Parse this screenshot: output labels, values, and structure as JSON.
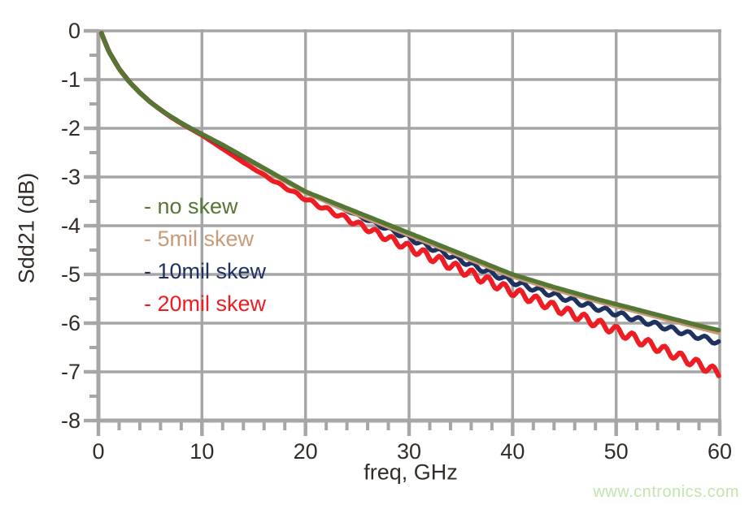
{
  "page": {
    "background": "#ffffff"
  },
  "watermark": {
    "text": "www.cntronics.com",
    "color": "#c3e4af"
  },
  "chart_data": {
    "type": "line",
    "title": "",
    "xlabel": "freq, GHz",
    "ylabel": "Sdd21 (dB)",
    "xlim": [
      0,
      60
    ],
    "ylim": [
      -8,
      0
    ],
    "x_ticks": [
      0,
      10,
      20,
      30,
      40,
      50,
      60
    ],
    "y_ticks": [
      0,
      -1,
      -2,
      -3,
      -4,
      -5,
      -6,
      -7,
      -8
    ],
    "x_minor_step": 2,
    "y_minor_step": 0.5,
    "grid": true,
    "legend_position": "inside-upper-left",
    "colors": {
      "grid": "#a6a6a6",
      "axis": "#a6a6a6",
      "tick_text": "#332c28"
    },
    "series": [
      {
        "name": "no-skew",
        "label": "- no skew",
        "color": "#567634",
        "width": 5.5,
        "points": [
          [
            0.3,
            -0.05
          ],
          [
            0.5,
            -0.16
          ],
          [
            0.75,
            -0.3
          ],
          [
            1,
            -0.42
          ],
          [
            1.5,
            -0.61
          ],
          [
            2,
            -0.78
          ],
          [
            2.5,
            -0.92
          ],
          [
            3,
            -1.05
          ],
          [
            3.5,
            -1.16
          ],
          [
            4,
            -1.27
          ],
          [
            4.5,
            -1.37
          ],
          [
            5,
            -1.46
          ],
          [
            6,
            -1.62
          ],
          [
            7,
            -1.76
          ],
          [
            8,
            -1.89
          ],
          [
            9,
            -2.01
          ],
          [
            10,
            -2.12
          ],
          [
            11,
            -2.23
          ],
          [
            12,
            -2.34
          ],
          [
            13,
            -2.46
          ],
          [
            14,
            -2.58
          ],
          [
            15,
            -2.7
          ],
          [
            16,
            -2.82
          ],
          [
            17,
            -2.94
          ],
          [
            18,
            -3.06
          ],
          [
            19,
            -3.18
          ],
          [
            20,
            -3.3
          ],
          [
            22,
            -3.47
          ],
          [
            24,
            -3.64
          ],
          [
            26,
            -3.81
          ],
          [
            28,
            -3.98
          ],
          [
            30,
            -4.15
          ],
          [
            32,
            -4.32
          ],
          [
            34,
            -4.49
          ],
          [
            36,
            -4.66
          ],
          [
            38,
            -4.83
          ],
          [
            40,
            -5.0
          ],
          [
            42,
            -5.13
          ],
          [
            44,
            -5.26
          ],
          [
            46,
            -5.38
          ],
          [
            48,
            -5.5
          ],
          [
            50,
            -5.61
          ],
          [
            52,
            -5.72
          ],
          [
            54,
            -5.83
          ],
          [
            56,
            -5.94
          ],
          [
            58,
            -6.05
          ],
          [
            60,
            -6.15
          ]
        ]
      },
      {
        "name": "5mil-skew",
        "label": "- 5mil skew",
        "color": "#c99a79",
        "width": 3.5,
        "points": [
          [
            0.3,
            -0.05
          ],
          [
            0.5,
            -0.16
          ],
          [
            1,
            -0.42
          ],
          [
            2,
            -0.78
          ],
          [
            3,
            -1.05
          ],
          [
            4,
            -1.27
          ],
          [
            5,
            -1.46
          ],
          [
            6,
            -1.62
          ],
          [
            7,
            -1.76
          ],
          [
            8,
            -1.89
          ],
          [
            9,
            -2.01
          ],
          [
            10,
            -2.12
          ],
          [
            12,
            -2.35
          ],
          [
            14,
            -2.6
          ],
          [
            16,
            -2.85
          ],
          [
            18,
            -3.1
          ],
          [
            20,
            -3.34
          ],
          [
            22,
            -3.52
          ],
          [
            24,
            -3.7
          ],
          [
            26,
            -3.87
          ],
          [
            28,
            -4.04
          ],
          [
            30,
            -4.21
          ],
          [
            32,
            -4.38
          ],
          [
            34,
            -4.55
          ],
          [
            36,
            -4.72
          ],
          [
            38,
            -4.89
          ],
          [
            40,
            -5.06
          ],
          [
            42,
            -5.19
          ],
          [
            44,
            -5.32
          ],
          [
            46,
            -5.44
          ],
          [
            48,
            -5.56
          ],
          [
            50,
            -5.67
          ],
          [
            52,
            -5.78
          ],
          [
            54,
            -5.89
          ],
          [
            56,
            -6.0
          ],
          [
            58,
            -6.11
          ],
          [
            60,
            -6.22
          ]
        ]
      },
      {
        "name": "10mil-skew",
        "label": "- 10mil skew",
        "color": "#1e3160",
        "width": 5.5,
        "ripple": {
          "start": 23,
          "period": 1.6,
          "growth": 0.008,
          "max_amplitude": 0.05
        },
        "points": [
          [
            0.3,
            -0.05
          ],
          [
            0.5,
            -0.16
          ],
          [
            1,
            -0.42
          ],
          [
            2,
            -0.78
          ],
          [
            3,
            -1.05
          ],
          [
            4,
            -1.27
          ],
          [
            5,
            -1.46
          ],
          [
            6,
            -1.62
          ],
          [
            7,
            -1.76
          ],
          [
            8,
            -1.89
          ],
          [
            9,
            -2.01
          ],
          [
            10,
            -2.12
          ],
          [
            12,
            -2.35
          ],
          [
            14,
            -2.59
          ],
          [
            16,
            -2.83
          ],
          [
            18,
            -3.07
          ],
          [
            20,
            -3.31
          ],
          [
            22,
            -3.5
          ],
          [
            24,
            -3.69
          ],
          [
            26,
            -3.88
          ],
          [
            28,
            -4.07
          ],
          [
            30,
            -4.25
          ],
          [
            32,
            -4.44
          ],
          [
            34,
            -4.62
          ],
          [
            36,
            -4.8
          ],
          [
            38,
            -4.98
          ],
          [
            40,
            -5.15
          ],
          [
            42,
            -5.29
          ],
          [
            44,
            -5.42
          ],
          [
            46,
            -5.55
          ],
          [
            48,
            -5.68
          ],
          [
            50,
            -5.8
          ],
          [
            52,
            -5.92
          ],
          [
            54,
            -6.04
          ],
          [
            56,
            -6.16
          ],
          [
            58,
            -6.28
          ],
          [
            60,
            -6.4
          ]
        ]
      },
      {
        "name": "20mil-skew",
        "label": "- 20mil skew",
        "color": "#ee1c23",
        "width": 6,
        "ripple": {
          "start": 14,
          "period": 1.55,
          "growth": 0.005,
          "max_amplitude": 0.09
        },
        "points": [
          [
            0.3,
            -0.05
          ],
          [
            0.5,
            -0.16
          ],
          [
            1,
            -0.42
          ],
          [
            2,
            -0.78
          ],
          [
            3,
            -1.05
          ],
          [
            4,
            -1.27
          ],
          [
            5,
            -1.46
          ],
          [
            6,
            -1.62
          ],
          [
            7,
            -1.77
          ],
          [
            8,
            -1.9
          ],
          [
            9,
            -2.02
          ],
          [
            10,
            -2.14
          ],
          [
            11,
            -2.28
          ],
          [
            12,
            -2.42
          ],
          [
            13,
            -2.56
          ],
          [
            14,
            -2.7
          ],
          [
            15,
            -2.83
          ],
          [
            16,
            -2.96
          ],
          [
            17,
            -3.09
          ],
          [
            18,
            -3.21
          ],
          [
            19,
            -3.33
          ],
          [
            20,
            -3.45
          ],
          [
            22,
            -3.66
          ],
          [
            24,
            -3.86
          ],
          [
            26,
            -4.06
          ],
          [
            28,
            -4.26
          ],
          [
            30,
            -4.45
          ],
          [
            32,
            -4.63
          ],
          [
            34,
            -4.81
          ],
          [
            36,
            -4.99
          ],
          [
            38,
            -5.17
          ],
          [
            40,
            -5.35
          ],
          [
            42,
            -5.51
          ],
          [
            44,
            -5.67
          ],
          [
            46,
            -5.83
          ],
          [
            48,
            -5.99
          ],
          [
            50,
            -6.15
          ],
          [
            52,
            -6.33
          ],
          [
            54,
            -6.5
          ],
          [
            56,
            -6.68
          ],
          [
            58,
            -6.85
          ],
          [
            60,
            -7.03
          ]
        ]
      }
    ]
  }
}
